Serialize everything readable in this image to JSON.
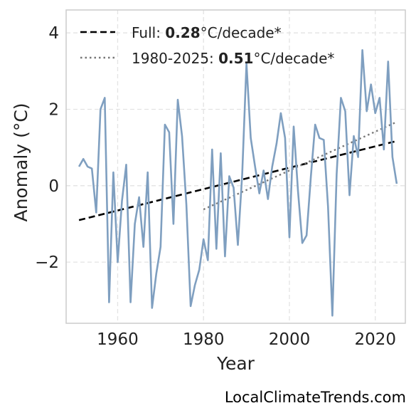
{
  "chart_data": {
    "type": "line",
    "xlabel": "Year",
    "ylabel": "Anomaly (°C)",
    "xlim": [
      1948,
      2027
    ],
    "ylim": [
      -3.6,
      4.6
    ],
    "xticks": [
      1960,
      1980,
      2000,
      2020
    ],
    "yticks": [
      -2,
      0,
      2,
      4
    ],
    "ytick_labels": [
      "−2",
      "0",
      "2",
      "4"
    ],
    "grid": true,
    "legend_position": "top-left",
    "series": [
      {
        "x": [
          1951,
          1952,
          1953,
          1954,
          1955,
          1956,
          1957,
          1958,
          1959,
          1960,
          1961,
          1962,
          1963,
          1964,
          1965,
          1966,
          1967,
          1968,
          1969,
          1970,
          1971,
          1972,
          1973,
          1974,
          1975,
          1976,
          1977,
          1978,
          1979,
          1980,
          1981,
          1982,
          1983,
          1984,
          1985,
          1986,
          1987,
          1988,
          1989,
          1990,
          1991,
          1992,
          1993,
          1994,
          1995,
          1996,
          1997,
          1998,
          1999,
          2000,
          2001,
          2002,
          2003,
          2004,
          2005,
          2006,
          2007,
          2008,
          2009,
          2010,
          2011,
          2012,
          2013,
          2014,
          2015,
          2016,
          2017,
          2018,
          2019,
          2020,
          2021,
          2022,
          2023,
          2024,
          2025
        ],
        "values": [
          0.5,
          0.7,
          0.5,
          0.45,
          -0.7,
          2.0,
          2.3,
          -3.05,
          0.35,
          -2.0,
          -0.4,
          0.55,
          -3.05,
          -1.0,
          -0.3,
          -1.6,
          0.35,
          -3.2,
          -2.3,
          -1.6,
          1.6,
          1.4,
          -1.0,
          2.25,
          1.3,
          -0.5,
          -3.15,
          -2.6,
          -2.2,
          -1.4,
          -1.95,
          0.95,
          -1.65,
          0.85,
          -1.85,
          0.25,
          -0.05,
          -1.55,
          0.3,
          3.2,
          1.25,
          0.5,
          -0.2,
          0.4,
          -0.35,
          0.5,
          1.1,
          1.9,
          1.25,
          -1.35,
          1.55,
          -0.15,
          -1.5,
          -1.3,
          0.25,
          1.6,
          1.25,
          1.2,
          -0.55,
          -3.4,
          0.3,
          2.3,
          1.95,
          -0.25,
          1.3,
          0.75,
          3.55,
          1.95,
          2.65,
          1.9,
          2.3,
          0.95,
          3.25,
          0.75,
          0.05
        ],
        "color": "#7f9fc0"
      }
    ],
    "trends": [
      {
        "label_prefix": "Full: ",
        "rate": "0.28",
        "unit": "°C/decade*",
        "style": "dashed",
        "color": "#000000",
        "x": [
          1951,
          2025
        ],
        "y": [
          -0.9,
          1.17
        ]
      },
      {
        "label_prefix": "1980-2025: ",
        "rate": "0.51",
        "unit": "°C/decade*",
        "style": "dotted",
        "color": "#777777",
        "x": [
          1980,
          2025
        ],
        "y": [
          -0.62,
          1.67
        ]
      }
    ]
  },
  "credit": "LocalClimateTrends.com"
}
